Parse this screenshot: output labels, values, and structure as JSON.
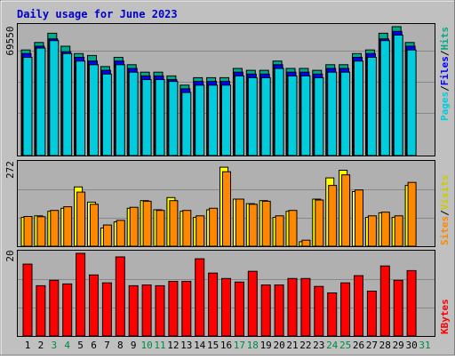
{
  "chart_data": [
    {
      "type": "bar",
      "title": "Daily usage for June 2023",
      "categories": [
        "1",
        "2",
        "3",
        "4",
        "5",
        "6",
        "7",
        "8",
        "9",
        "10",
        "11",
        "12",
        "13",
        "14",
        "15",
        "16",
        "17",
        "18",
        "19",
        "20",
        "21",
        "22",
        "23",
        "24",
        "25",
        "26",
        "27",
        "28",
        "29",
        "30",
        "31"
      ],
      "weekend_days": [
        "3",
        "4",
        "10",
        "11",
        "17",
        "18",
        "24",
        "25",
        "31"
      ],
      "panel": "hits-files-pages",
      "y_tick_label": "69550",
      "legend": [
        "Pages",
        "Files",
        "Hits"
      ],
      "series": [
        {
          "name": "Hits",
          "color": "#00aa88",
          "values": [
            57000,
            61000,
            66000,
            59000,
            55000,
            54000,
            48000,
            53000,
            49000,
            45000,
            45000,
            43000,
            38000,
            42000,
            42000,
            42000,
            47000,
            46000,
            46000,
            51000,
            47000,
            47000,
            46000,
            49000,
            49000,
            55000,
            57000,
            66000,
            69550,
            61000,
            0
          ]
        },
        {
          "name": "Files",
          "color": "#0000ff",
          "values": [
            55000,
            59000,
            63000,
            56000,
            53000,
            51000,
            46000,
            51000,
            47000,
            43000,
            43000,
            41000,
            36000,
            40000,
            40000,
            40000,
            45000,
            44000,
            44000,
            49000,
            45000,
            45000,
            44000,
            47000,
            47000,
            53000,
            55000,
            63000,
            67000,
            59000,
            0
          ]
        },
        {
          "name": "Pages",
          "color": "#00ccdd",
          "values": [
            53000,
            58000,
            62000,
            55000,
            51000,
            49000,
            44000,
            49000,
            45000,
            41000,
            41000,
            40000,
            34000,
            38000,
            38000,
            38000,
            43000,
            42000,
            42000,
            47000,
            43000,
            43000,
            42000,
            45000,
            45000,
            51000,
            53000,
            62000,
            65000,
            57000,
            0
          ]
        }
      ]
    },
    {
      "type": "bar",
      "panel": "visits-sites",
      "y_tick_label": "272",
      "legend": [
        "Sites",
        "Visits"
      ],
      "series": [
        {
          "name": "Visits",
          "color": "#ffff00",
          "values": [
            95,
            100,
            115,
            125,
            195,
            145,
            60,
            80,
            125,
            150,
            120,
            160,
            115,
            95,
            120,
            260,
            155,
            140,
            150,
            95,
            115,
            15,
            155,
            225,
            250,
            180,
            95,
            110,
            95,
            200,
            0
          ]
        },
        {
          "name": "Sites",
          "color": "#ff8800",
          "values": [
            98,
            97,
            118,
            130,
            178,
            138,
            70,
            85,
            128,
            148,
            118,
            150,
            118,
            100,
            125,
            245,
            155,
            138,
            148,
            100,
            118,
            20,
            152,
            200,
            235,
            185,
            100,
            112,
            100,
            210,
            0
          ]
        }
      ]
    },
    {
      "type": "bar",
      "panel": "kbytes",
      "y_tick_label": "20",
      "legend": [
        "KBytes"
      ],
      "series": [
        {
          "name": "KBytes",
          "color": "#ff0000",
          "values": [
            20,
            14,
            15.5,
            14.5,
            23,
            17,
            14.8,
            22,
            14,
            14.2,
            14,
            15.2,
            15.2,
            21.5,
            17.5,
            16,
            15,
            18,
            14.2,
            14.2,
            16,
            16,
            13.8,
            12,
            14.8,
            16.8,
            12.5,
            19.5,
            15.5,
            18.2,
            0
          ]
        }
      ]
    }
  ]
}
